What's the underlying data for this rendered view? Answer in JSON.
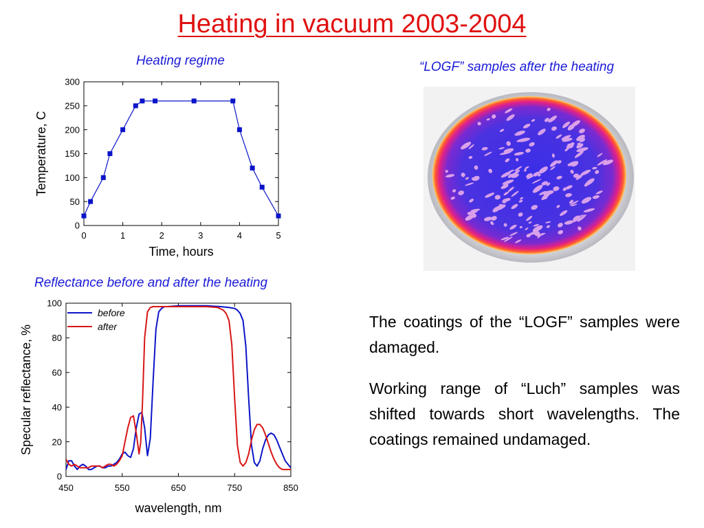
{
  "page": {
    "title": "Heating in vacuum 2003-2004",
    "photo_caption": "“LOGF” samples after the heating",
    "paragraphs": [
      "The coatings of the “LOGF” samples were damaged.",
      "Working range of “Luch” samples was shifted towards short wavelengths. The coatings remained undamaged."
    ]
  },
  "colors": {
    "title": "#e01010",
    "caption": "#1a1ad8",
    "before": "#0a14c8",
    "after": "#d81414"
  },
  "chart_data": [
    {
      "type": "line",
      "title": "Heating regime",
      "xlabel": "Time, hours",
      "ylabel": "Temperature, C",
      "xlim": [
        0,
        5
      ],
      "ylim": [
        0,
        300
      ],
      "xticks": [
        0,
        1,
        2,
        3,
        4,
        5
      ],
      "yticks": [
        0,
        50,
        100,
        150,
        200,
        250,
        300
      ],
      "series": [
        {
          "x": [
            0,
            0.17,
            0.5,
            0.67,
            1.0,
            1.33,
            1.5,
            1.83,
            2.83,
            3.83,
            4.0,
            4.33,
            4.58,
            5.0
          ],
          "y": [
            20,
            50,
            100,
            150,
            200,
            250,
            260,
            260,
            260,
            260,
            200,
            120,
            80,
            20
          ]
        }
      ]
    },
    {
      "type": "line",
      "title": "Reflectance before and after the heating",
      "xlabel": "wavelength, nm",
      "ylabel": "Specular reflectance, %",
      "xlim": [
        450,
        850
      ],
      "ylim": [
        0,
        100
      ],
      "xticks": [
        450,
        550,
        650,
        750,
        850
      ],
      "yticks": [
        0,
        20,
        40,
        60,
        80,
        100
      ],
      "legend": "top-left",
      "series": [
        {
          "name": "before",
          "x": [
            450,
            455,
            460,
            465,
            470,
            475,
            480,
            485,
            490,
            495,
            500,
            505,
            510,
            515,
            520,
            525,
            530,
            535,
            540,
            545,
            550,
            555,
            560,
            565,
            570,
            575,
            580,
            585,
            590,
            595,
            600,
            605,
            610,
            615,
            620,
            625,
            630,
            650,
            675,
            700,
            725,
            740,
            750,
            755,
            760,
            765,
            770,
            775,
            780,
            785,
            790,
            795,
            800,
            805,
            810,
            815,
            820,
            825,
            830,
            835,
            840,
            845,
            850
          ],
          "y": [
            4,
            9,
            9,
            6,
            4,
            6,
            7,
            6,
            4,
            4,
            5,
            6,
            6,
            5,
            5,
            6,
            6,
            7,
            8,
            10,
            13,
            14,
            12,
            11,
            16,
            28,
            36,
            37,
            28,
            12,
            22,
            55,
            85,
            95,
            97,
            98,
            98,
            98.5,
            98.5,
            98.5,
            98,
            97.5,
            97,
            96,
            94,
            90,
            75,
            45,
            18,
            8,
            6,
            9,
            16,
            21,
            24,
            25,
            24,
            21,
            17,
            13,
            9,
            7,
            5
          ]
        },
        {
          "name": "after",
          "x": [
            450,
            455,
            460,
            465,
            470,
            475,
            480,
            485,
            490,
            495,
            500,
            505,
            510,
            515,
            520,
            525,
            530,
            535,
            540,
            545,
            550,
            555,
            560,
            565,
            570,
            575,
            580,
            583,
            586,
            590,
            595,
            600,
            605,
            610,
            620,
            650,
            675,
            700,
            720,
            730,
            735,
            740,
            745,
            750,
            755,
            760,
            765,
            770,
            775,
            780,
            785,
            790,
            795,
            800,
            805,
            810,
            815,
            820,
            825,
            830,
            835,
            840,
            850
          ],
          "y": [
            10,
            7,
            6,
            7,
            6,
            5,
            5,
            5,
            5,
            6,
            6,
            6,
            6,
            5,
            6,
            7,
            7,
            6,
            7,
            9,
            12,
            20,
            28,
            34,
            35,
            25,
            13,
            20,
            42,
            80,
            95,
            97.5,
            98,
            98,
            98,
            98,
            98,
            98,
            97.5,
            96,
            94,
            90,
            76,
            45,
            18,
            8,
            6,
            8,
            13,
            21,
            27,
            30,
            30,
            28,
            24,
            19,
            14,
            10,
            7,
            5,
            4,
            4,
            4
          ]
        }
      ]
    }
  ]
}
